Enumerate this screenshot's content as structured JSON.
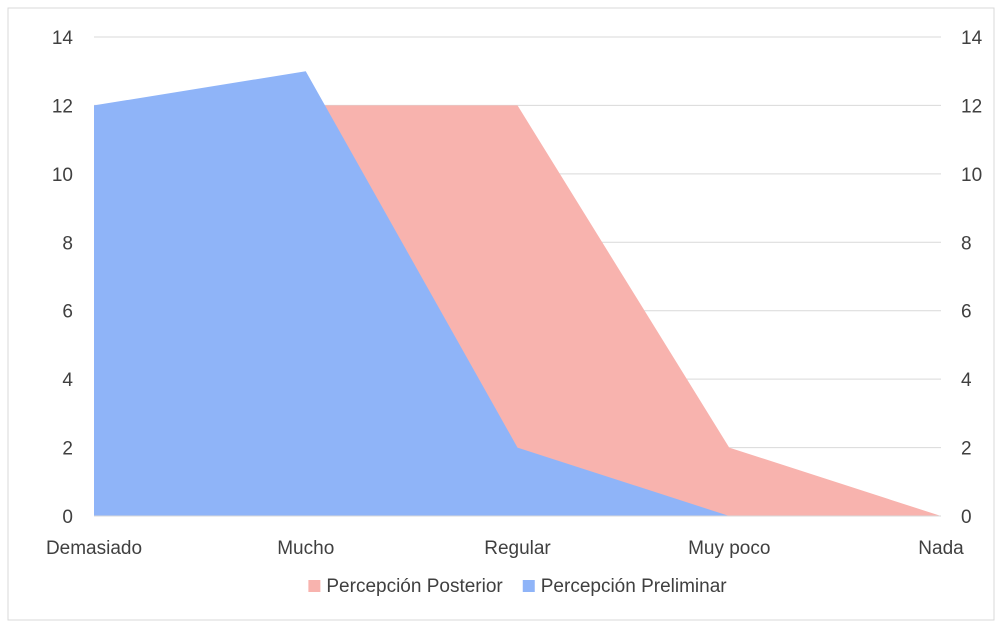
{
  "chart_data": {
    "type": "area",
    "categories": [
      "Demasiado",
      "Mucho",
      "Regular",
      "Muy poco",
      "Nada"
    ],
    "series": [
      {
        "name": "Percepción Posterior",
        "values": [
          12,
          12,
          12,
          2,
          0
        ],
        "color": "#f8b3ae"
      },
      {
        "name": "Percepción Preliminar",
        "values": [
          12,
          13,
          2,
          0,
          0
        ],
        "color": "#8fb4f8"
      }
    ],
    "ylim": [
      0,
      14
    ],
    "yticks": [
      0,
      2,
      4,
      6,
      8,
      10,
      12,
      14
    ],
    "secondary_axis": true,
    "grid": true,
    "legend_position": "bottom"
  }
}
